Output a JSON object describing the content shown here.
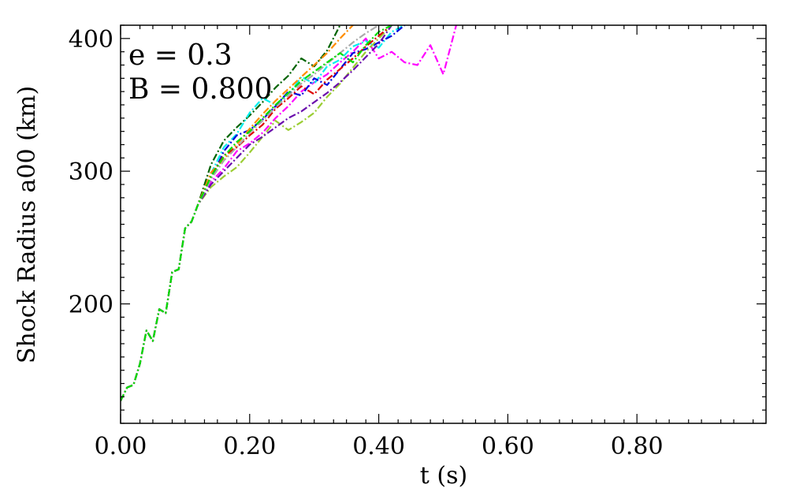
{
  "chart_data": {
    "type": "line",
    "xlabel": "t (s)",
    "ylabel": "Shock Radius a00 (km)",
    "xlim": [
      0,
      1.0
    ],
    "ylim": [
      110,
      410
    ],
    "x_ticks": [
      0.0,
      0.2,
      0.4,
      0.6,
      0.8
    ],
    "x_tick_labels": [
      "0.00",
      "0.20",
      "0.40",
      "0.60",
      "0.80"
    ],
    "y_ticks": [
      200,
      300,
      400
    ],
    "y_tick_labels": [
      "200",
      "300",
      "400"
    ],
    "annotations": [
      "e = 0.3",
      "B = 0.800"
    ],
    "grid": false,
    "legend": "none",
    "common_path": {
      "x": [
        0.0,
        0.01,
        0.02,
        0.03,
        0.04,
        0.05,
        0.06,
        0.07,
        0.08,
        0.09,
        0.1,
        0.11,
        0.12
      ],
      "y": [
        127,
        137,
        139,
        155,
        180,
        172,
        196,
        193,
        224,
        226,
        257,
        262,
        275
      ]
    },
    "series": [
      {
        "color": "#ff00ff",
        "x": [
          0.14,
          0.16,
          0.18,
          0.2,
          0.22,
          0.24,
          0.26,
          0.28,
          0.3,
          0.32,
          0.34,
          0.36,
          0.38,
          0.4,
          0.42,
          0.44,
          0.46,
          0.48,
          0.5,
          0.52
        ],
        "y": [
          292,
          302,
          315,
          321,
          329,
          340,
          349,
          360,
          367,
          373,
          382,
          390,
          400,
          385,
          390,
          382,
          380,
          395,
          373,
          410
        ]
      },
      {
        "color": "#006400",
        "x": [
          0.14,
          0.16,
          0.18,
          0.2,
          0.22,
          0.24,
          0.26,
          0.28,
          0.3,
          0.32,
          0.34
        ],
        "y": [
          305,
          323,
          333,
          342,
          352,
          363,
          372,
          385,
          379,
          391,
          410
        ]
      },
      {
        "color": "#00eeee",
        "x": [
          0.14,
          0.16,
          0.18,
          0.2,
          0.22,
          0.24,
          0.26,
          0.28,
          0.3,
          0.32,
          0.34,
          0.36,
          0.38,
          0.4,
          0.42,
          0.44
        ],
        "y": [
          298,
          318,
          328,
          344,
          355,
          350,
          357,
          371,
          366,
          379,
          384,
          394,
          398,
          393,
          405,
          410
        ]
      },
      {
        "color": "#0000dd",
        "x": [
          0.14,
          0.16,
          0.18,
          0.2,
          0.22,
          0.24,
          0.26,
          0.28,
          0.3,
          0.32,
          0.34,
          0.36,
          0.38,
          0.4,
          0.42,
          0.44
        ],
        "y": [
          294,
          315,
          327,
          331,
          339,
          349,
          360,
          357,
          370,
          365,
          377,
          389,
          392,
          397,
          402,
          410
        ]
      },
      {
        "color": "#ff8c00",
        "x": [
          0.14,
          0.16,
          0.18,
          0.2,
          0.22,
          0.24,
          0.26,
          0.28,
          0.3,
          0.32,
          0.34,
          0.36
        ],
        "y": [
          299,
          309,
          320,
          332,
          343,
          353,
          362,
          371,
          380,
          389,
          400,
          410
        ]
      },
      {
        "color": "#9acd32",
        "x": [
          0.14,
          0.16,
          0.18,
          0.2,
          0.22,
          0.24,
          0.26,
          0.28,
          0.3,
          0.32,
          0.34,
          0.36,
          0.38,
          0.4,
          0.42
        ],
        "y": [
          288,
          296,
          303,
          314,
          326,
          338,
          331,
          337,
          344,
          356,
          366,
          378,
          390,
          400,
          410
        ]
      },
      {
        "color": "#dd0000",
        "x": [
          0.14,
          0.16,
          0.18,
          0.2,
          0.22,
          0.24,
          0.26,
          0.28,
          0.3,
          0.32,
          0.34,
          0.36,
          0.38,
          0.4,
          0.42
        ],
        "y": [
          296,
          312,
          318,
          327,
          335,
          347,
          355,
          364,
          358,
          369,
          377,
          385,
          394,
          402,
          410
        ]
      },
      {
        "color": "#6a0dad",
        "x": [
          0.14,
          0.16,
          0.18,
          0.2,
          0.22,
          0.24,
          0.26,
          0.28,
          0.3,
          0.32,
          0.34,
          0.36,
          0.38,
          0.4,
          0.42
        ],
        "y": [
          290,
          300,
          310,
          320,
          326,
          333,
          340,
          345,
          352,
          359,
          367,
          376,
          386,
          396,
          410
        ]
      },
      {
        "color": "#aaaaaa",
        "x": [
          0.14,
          0.16,
          0.18,
          0.2,
          0.22,
          0.24,
          0.26,
          0.28,
          0.3,
          0.32,
          0.34,
          0.36,
          0.38,
          0.4
        ],
        "y": [
          294,
          308,
          318,
          329,
          338,
          348,
          357,
          366,
          373,
          381,
          389,
          397,
          404,
          410
        ]
      },
      {
        "color": "#00dd00",
        "x": [
          0.14,
          0.16,
          0.18,
          0.2,
          0.22,
          0.24,
          0.26,
          0.28,
          0.3,
          0.32,
          0.34,
          0.36,
          0.38,
          0.4,
          0.42
        ],
        "y": [
          296,
          311,
          322,
          330,
          340,
          350,
          359,
          368,
          375,
          382,
          389,
          382,
          395,
          405,
          410
        ]
      }
    ]
  }
}
